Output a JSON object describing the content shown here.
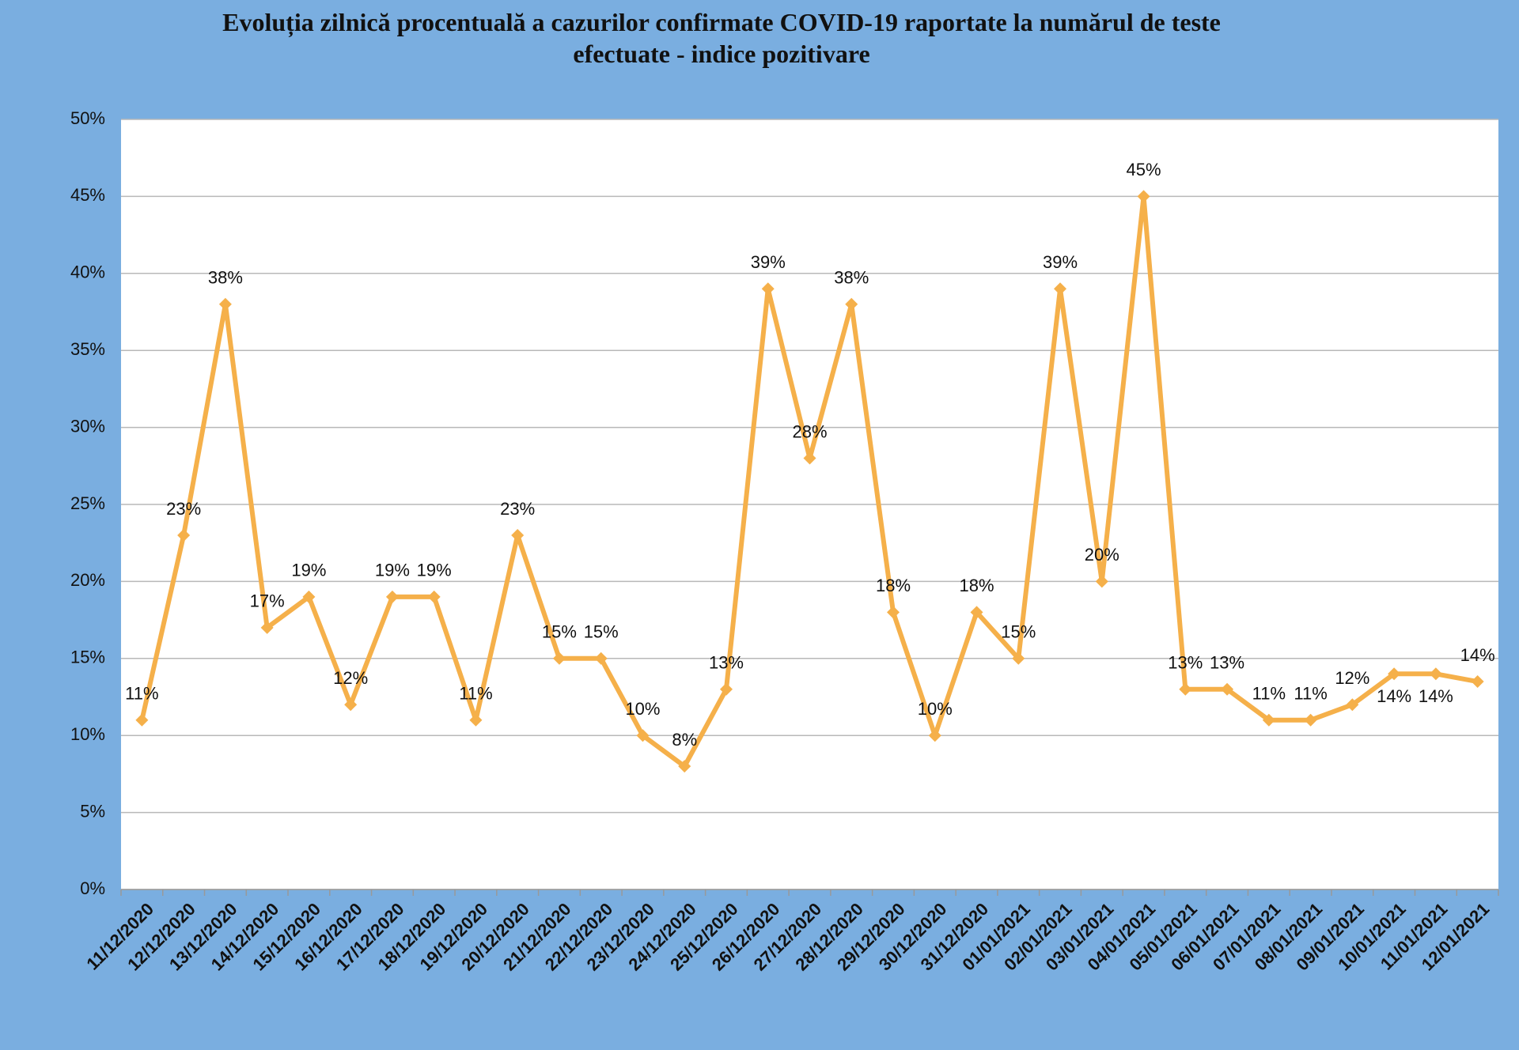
{
  "chart_data": {
    "type": "line",
    "title": "Evoluția zilnică procentuală a cazurilor confirmate COVID-19 raportate la numărul de teste efectuate - indice pozitivare",
    "categories": [
      "11/12/2020",
      "12/12/2020",
      "13/12/2020",
      "14/12/2020",
      "15/12/2020",
      "16/12/2020",
      "17/12/2020",
      "18/12/2020",
      "19/12/2020",
      "20/12/2020",
      "21/12/2020",
      "22/12/2020",
      "23/12/2020",
      "24/12/2020",
      "25/12/2020",
      "26/12/2020",
      "27/12/2020",
      "28/12/2020",
      "29/12/2020",
      "30/12/2020",
      "31/12/2020",
      "01/01/2021",
      "02/01/2021",
      "03/01/2021",
      "04/01/2021",
      "05/01/2021",
      "06/01/2021",
      "07/01/2021",
      "08/01/2021",
      "09/01/2021",
      "10/01/2021",
      "11/01/2021",
      "12/01/2021"
    ],
    "series": [
      {
        "name": "indice pozitivare",
        "color": "#f5b04a",
        "values": [
          11,
          23,
          38,
          17,
          19,
          12,
          19,
          19,
          11,
          23,
          15,
          15,
          10,
          8,
          13,
          39,
          28,
          38,
          18,
          10,
          18,
          15,
          39,
          20,
          45,
          13,
          13,
          11,
          11,
          12,
          14,
          14,
          13.5
        ],
        "value_labels": [
          "11%",
          "23%",
          "38%",
          "17%",
          "19%",
          "12%",
          "19%",
          "19%",
          "11%",
          "23%",
          "15%",
          "15%",
          "10%",
          "8%",
          "13%",
          "39%",
          "28%",
          "38%",
          "18%",
          "10%",
          "18%",
          "15%",
          "39%",
          "20%",
          "45%",
          "13%",
          "13%",
          "11%",
          "11%",
          "12%",
          "14%",
          "14%",
          "14%"
        ]
      }
    ],
    "ylim": [
      0,
      50
    ],
    "yticks": [
      {
        "value": 0,
        "label": "0%"
      },
      {
        "value": 5,
        "label": "5%"
      },
      {
        "value": 10,
        "label": "10%"
      },
      {
        "value": 15,
        "label": "15%"
      },
      {
        "value": 20,
        "label": "20%"
      },
      {
        "value": 25,
        "label": "25%"
      },
      {
        "value": 30,
        "label": "30%"
      },
      {
        "value": 35,
        "label": "35%"
      },
      {
        "value": 40,
        "label": "40%"
      },
      {
        "value": 45,
        "label": "45%"
      },
      {
        "value": 50,
        "label": "50%"
      }
    ],
    "grid": true
  }
}
